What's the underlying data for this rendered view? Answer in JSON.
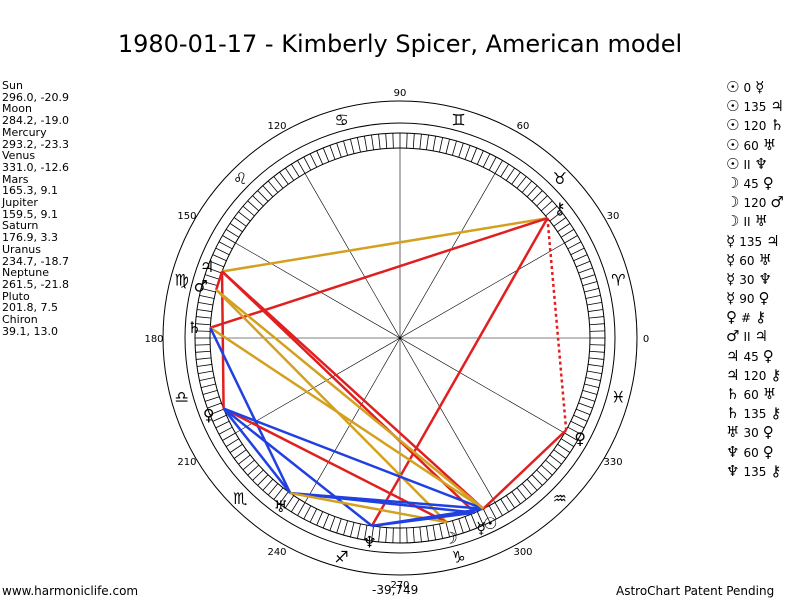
{
  "title": "1980-01-17 - Kimberly Spicer, American model",
  "planets": [
    {
      "name": "Sun",
      "pos": "296.0, -20.9",
      "glyph": "☉",
      "lon": 296.0
    },
    {
      "name": "Moon",
      "pos": "284.2, -19.0",
      "glyph": "☽",
      "lon": 284.2
    },
    {
      "name": "Mercury",
      "pos": "293.2, -23.3",
      "glyph": "☿",
      "lon": 293.2
    },
    {
      "name": "Venus",
      "pos": "331.0, -12.6",
      "glyph": "♀",
      "lon": 331.0
    },
    {
      "name": "Mars",
      "pos": "165.3, 9.1",
      "glyph": "♂",
      "lon": 165.3
    },
    {
      "name": "Jupiter",
      "pos": "159.5, 9.1",
      "glyph": "♃",
      "lon": 159.5
    },
    {
      "name": "Saturn",
      "pos": "176.9, 3.3",
      "glyph": "♄",
      "lon": 176.9
    },
    {
      "name": "Uranus",
      "pos": "234.7, -18.7",
      "glyph": "♅",
      "lon": 234.7
    },
    {
      "name": "Neptune",
      "pos": "261.5, -21.8",
      "glyph": "♆",
      "lon": 261.5
    },
    {
      "name": "Pluto",
      "pos": "201.8, 7.5",
      "glyph": "♀",
      "lon": 201.8
    },
    {
      "name": "Chiron",
      "pos": "39.1, 13.0",
      "glyph": "⚷",
      "lon": 39.1
    }
  ],
  "aspects": [
    {
      "a": "☉",
      "n": "0",
      "b": "☿",
      "color": "#000000"
    },
    {
      "a": "☉",
      "n": "135",
      "b": "♃",
      "color": "#000000"
    },
    {
      "a": "☉",
      "n": "120",
      "b": "♄",
      "color": "#000000"
    },
    {
      "a": "☉",
      "n": "60",
      "b": "♅",
      "color": "#000000"
    },
    {
      "a": "☉",
      "n": "II",
      "b": "♆",
      "color": "#000000"
    },
    {
      "a": "☽",
      "n": "45",
      "b": "♀",
      "color": "#000000"
    },
    {
      "a": "☽",
      "n": "120",
      "b": "♂",
      "color": "#000000"
    },
    {
      "a": "☽",
      "n": "II",
      "b": "♅",
      "color": "#000000"
    },
    {
      "a": "☿",
      "n": "135",
      "b": "♃",
      "color": "#000000"
    },
    {
      "a": "☿",
      "n": "60",
      "b": "♅",
      "color": "#000000"
    },
    {
      "a": "☿",
      "n": "30",
      "b": "♆",
      "color": "#000000"
    },
    {
      "a": "☿",
      "n": "90",
      "b": "♀",
      "color": "#000000"
    },
    {
      "a": "♀",
      "n": "#",
      "b": "⚷",
      "color": "#000000"
    },
    {
      "a": "♂",
      "n": "II",
      "b": "♃",
      "color": "#000000"
    },
    {
      "a": "♃",
      "n": "45",
      "b": "♀",
      "color": "#000000"
    },
    {
      "a": "♃",
      "n": "120",
      "b": "⚷",
      "color": "#000000"
    },
    {
      "a": "♄",
      "n": "60",
      "b": "♅",
      "color": "#000000"
    },
    {
      "a": "♄",
      "n": "135",
      "b": "⚷",
      "color": "#000000"
    },
    {
      "a": "♅",
      "n": "30",
      "b": "♀",
      "color": "#000000"
    },
    {
      "a": "♆",
      "n": "60",
      "b": "♀",
      "color": "#000000"
    },
    {
      "a": "♆",
      "n": "135",
      "b": "⚷",
      "color": "#000000"
    }
  ],
  "degree_labels": [
    {
      "text": "0",
      "deg": 0
    },
    {
      "text": "30",
      "deg": 30
    },
    {
      "text": "60",
      "deg": 60
    },
    {
      "text": "90",
      "deg": 90
    },
    {
      "text": "120",
      "deg": 120
    },
    {
      "text": "150",
      "deg": 150
    },
    {
      "text": "180",
      "deg": 180
    },
    {
      "text": "210",
      "deg": 210
    },
    {
      "text": "240",
      "deg": 240
    },
    {
      "text": "270",
      "deg": 270
    },
    {
      "text": "300",
      "deg": 300
    },
    {
      "text": "330",
      "deg": 330
    }
  ],
  "zodiac": [
    {
      "glyph": "♈",
      "deg": 15
    },
    {
      "glyph": "♉",
      "deg": 45
    },
    {
      "glyph": "♊",
      "deg": 75
    },
    {
      "glyph": "♋",
      "deg": 105
    },
    {
      "glyph": "♌",
      "deg": 135
    },
    {
      "glyph": "♍",
      "deg": 165
    },
    {
      "glyph": "♎",
      "deg": 195
    },
    {
      "glyph": "♏",
      "deg": 225
    },
    {
      "glyph": "♐",
      "deg": 255
    },
    {
      "glyph": "♑",
      "deg": 285
    },
    {
      "glyph": "♒",
      "deg": 315
    },
    {
      "glyph": "♓",
      "deg": 345
    }
  ],
  "lines": [
    {
      "from": 39.1,
      "to": 159.5,
      "color": "#d4a020"
    },
    {
      "from": 39.1,
      "to": 176.9,
      "color": "#e02020"
    },
    {
      "from": 39.1,
      "to": 261.5,
      "color": "#e02020"
    },
    {
      "from": 39.1,
      "to": 331.0,
      "color": "#e02020",
      "dotted": true
    },
    {
      "from": 159.5,
      "to": 165.3,
      "color": "#e02020"
    },
    {
      "from": 159.5,
      "to": 293.2,
      "color": "#e02020"
    },
    {
      "from": 159.5,
      "to": 296.0,
      "color": "#e02020"
    },
    {
      "from": 159.5,
      "to": 201.8,
      "color": "#e02020"
    },
    {
      "from": 165.3,
      "to": 284.2,
      "color": "#d4a020"
    },
    {
      "from": 176.9,
      "to": 296.0,
      "color": "#d4a020"
    },
    {
      "from": 176.9,
      "to": 234.7,
      "color": "#2040e0"
    },
    {
      "from": 201.8,
      "to": 284.2,
      "color": "#e02020"
    },
    {
      "from": 201.8,
      "to": 234.7,
      "color": "#2040e0"
    },
    {
      "from": 201.8,
      "to": 296.0,
      "color": "#2040e0"
    },
    {
      "from": 201.8,
      "to": 261.5,
      "color": "#2040e0"
    },
    {
      "from": 234.7,
      "to": 293.2,
      "color": "#2040e0"
    },
    {
      "from": 234.7,
      "to": 296.0,
      "color": "#2040e0"
    },
    {
      "from": 234.7,
      "to": 284.2,
      "color": "#d4a020"
    },
    {
      "from": 261.5,
      "to": 293.2,
      "color": "#2040e0"
    },
    {
      "from": 261.5,
      "to": 296.0,
      "color": "#2040e0"
    },
    {
      "from": 296.0,
      "to": 331.0,
      "color": "#e02020"
    },
    {
      "from": 165.3,
      "to": 296.0,
      "color": "#d4a020"
    }
  ],
  "coordinate_readout": "-39,749",
  "footer_left": "www.harmoniclife.com",
  "footer_right": "AstroChart Patent Pending"
}
